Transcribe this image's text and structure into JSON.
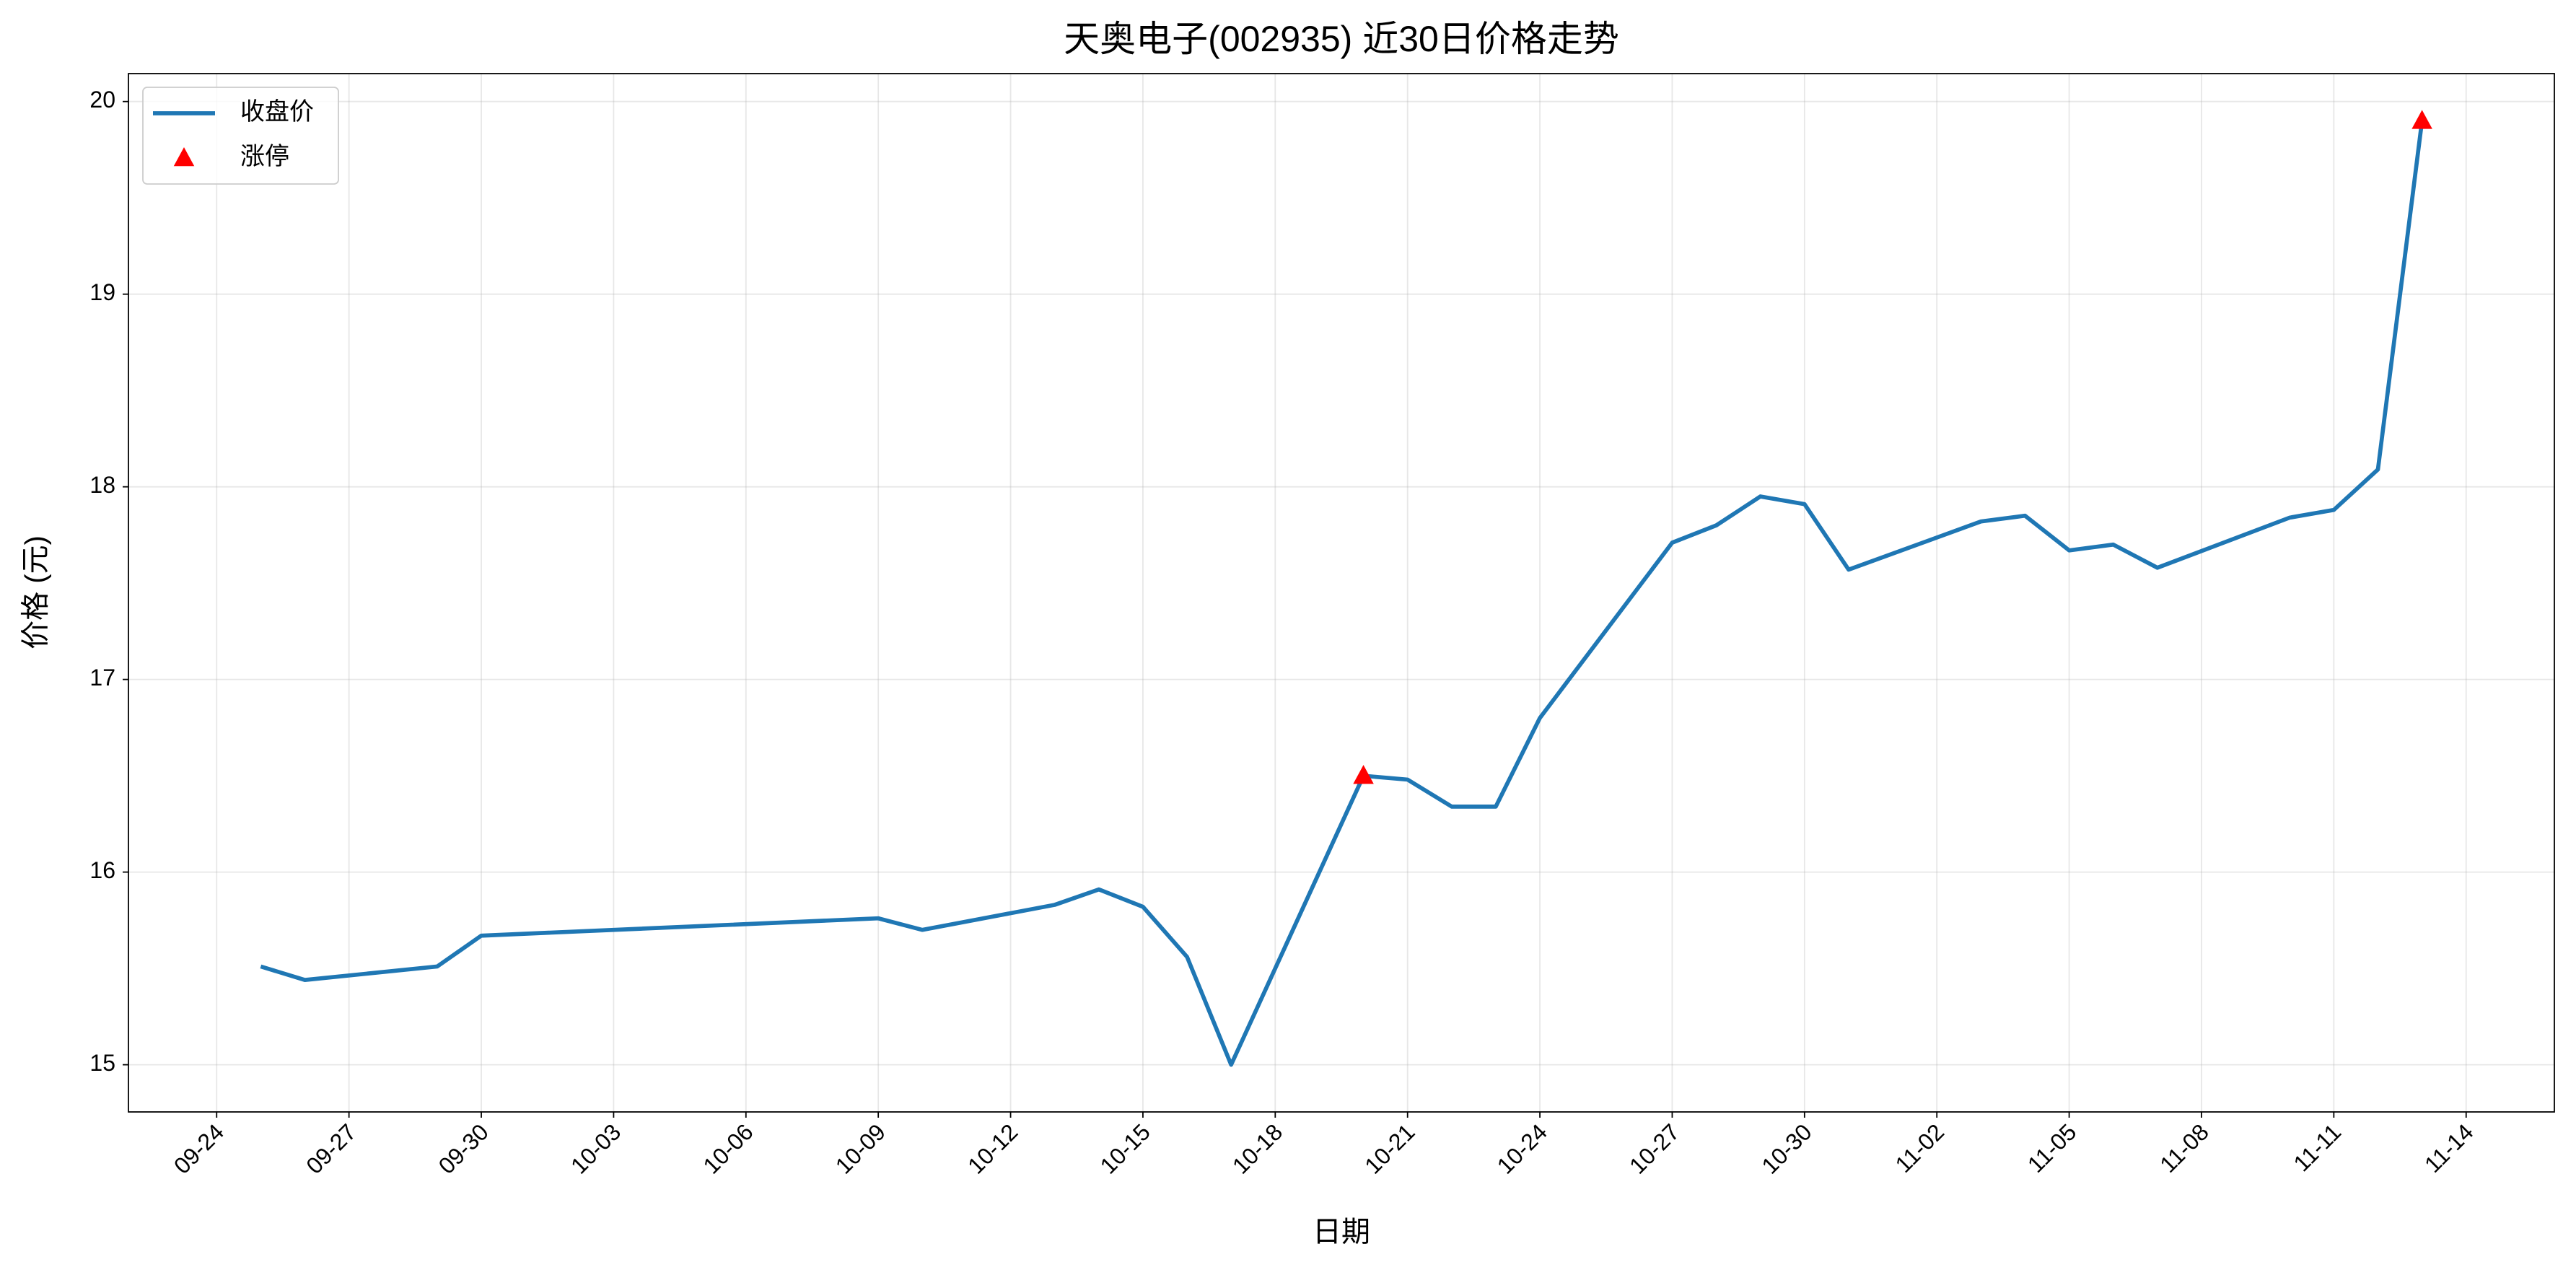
{
  "chart_data": {
    "type": "line",
    "title": "天奥电子(002935) 近30日价格走势",
    "x_label": "日期",
    "y_label": "价格 (元)",
    "series": [
      {
        "name": "收盘价",
        "type": "line",
        "color": "#1f77b4",
        "x": [
          "09-25",
          "09-26",
          "09-29",
          "09-30",
          "10-09",
          "10-10",
          "10-13",
          "10-14",
          "10-15",
          "10-16",
          "10-17",
          "10-20",
          "10-21",
          "10-22",
          "10-23",
          "10-24",
          "10-27",
          "10-28",
          "10-29",
          "10-30",
          "10-31",
          "11-03",
          "11-04",
          "11-05",
          "11-06",
          "11-07",
          "11-10",
          "11-11",
          "11-12",
          "11-13"
        ],
        "values": [
          15.51,
          15.44,
          15.51,
          15.67,
          15.76,
          15.7,
          15.83,
          15.91,
          15.82,
          15.56,
          15.0,
          16.5,
          16.48,
          16.34,
          16.34,
          16.8,
          17.71,
          17.8,
          17.95,
          17.91,
          17.57,
          17.82,
          17.85,
          17.67,
          17.7,
          17.58,
          17.84,
          17.88,
          18.09,
          19.9
        ]
      },
      {
        "name": "涨停",
        "type": "scatter",
        "marker": "triangle",
        "color": "#ff0000",
        "x": [
          "10-20",
          "11-13"
        ],
        "values": [
          16.5,
          19.9
        ]
      }
    ],
    "xlim": [
      "09-22",
      "11-16"
    ],
    "xticks": [
      "09-24",
      "09-27",
      "09-30",
      "10-03",
      "10-06",
      "10-09",
      "10-12",
      "10-15",
      "10-18",
      "10-21",
      "10-24",
      "10-27",
      "10-30",
      "11-02",
      "11-05",
      "11-08",
      "11-11",
      "11-14"
    ],
    "ylim": [
      14.755,
      20.145
    ],
    "yticks": [
      15,
      16,
      17,
      18,
      19,
      20
    ],
    "grid": true,
    "legend": "upper left"
  }
}
